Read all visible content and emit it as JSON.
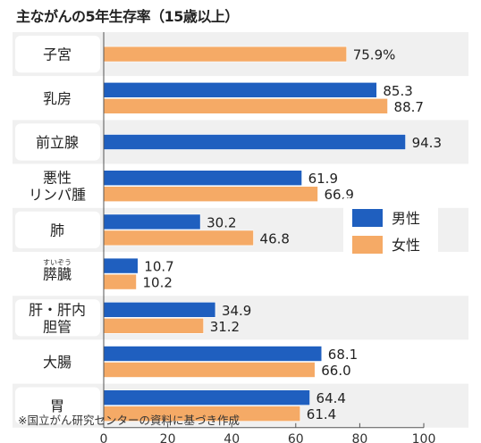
{
  "chart_data": {
    "type": "bar",
    "orientation": "horizontal",
    "title": "主ながんの5年生存率（15歳以上）",
    "categories": [
      {
        "lines": [
          "子宮"
        ],
        "ruby": ""
      },
      {
        "lines": [
          "乳房"
        ],
        "ruby": ""
      },
      {
        "lines": [
          "前立腺"
        ],
        "ruby": ""
      },
      {
        "lines": [
          "悪性",
          "リンパ腫"
        ],
        "ruby": ""
      },
      {
        "lines": [
          "肺"
        ],
        "ruby": ""
      },
      {
        "lines": [
          "膵臓"
        ],
        "ruby": "すいぞう"
      },
      {
        "lines": [
          "肝・肝内",
          "胆管"
        ],
        "ruby": ""
      },
      {
        "lines": [
          "大腸"
        ],
        "ruby": ""
      },
      {
        "lines": [
          "胃"
        ],
        "ruby": ""
      }
    ],
    "series": [
      {
        "name": "男性",
        "color": "#1f5fbf",
        "values": [
          null,
          85.3,
          94.3,
          61.9,
          30.2,
          10.7,
          34.9,
          68.1,
          64.4
        ],
        "labels": [
          "",
          "85.3",
          "94.3",
          "61.9",
          "30.2",
          "10.7",
          "34.9",
          "68.1",
          "64.4"
        ]
      },
      {
        "name": "女性",
        "color": "#f5aa66",
        "values": [
          75.9,
          88.7,
          null,
          66.9,
          46.8,
          10.2,
          31.2,
          66.0,
          61.4
        ],
        "labels": [
          "75.9%",
          "88.7",
          "",
          "66.9",
          "46.8",
          "10.2",
          "31.2",
          "66.0",
          "61.4"
        ]
      }
    ],
    "xlim": [
      0,
      100
    ],
    "xticks": [
      "0",
      "20",
      "40",
      "60",
      "80",
      "100"
    ],
    "grid": false,
    "legend_position": "right-middle",
    "background_band_colors": [
      "#f0f0f0",
      "#ffffff"
    ],
    "footnote": "※国立がん研究センターの資料に基づき作成"
  }
}
